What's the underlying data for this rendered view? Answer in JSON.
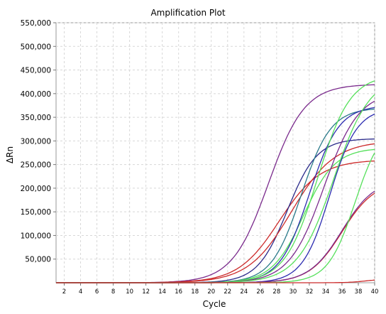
{
  "chart_data": {
    "type": "line",
    "title": "Amplification Plot",
    "xlabel": "Cycle",
    "ylabel": "ΔRn",
    "xlim": [
      1,
      40
    ],
    "ylim": [
      0,
      550000
    ],
    "x_ticks": [
      "2",
      "4",
      "6",
      "8",
      "10",
      "12",
      "14",
      "16",
      "18",
      "20",
      "22",
      "24",
      "26",
      "28",
      "30",
      "32",
      "34",
      "36",
      "38",
      "40"
    ],
    "y_ticks": [
      "50,000",
      "100,000",
      "150,000",
      "200,000",
      "250,000",
      "300,000",
      "350,000",
      "400,000",
      "450,000",
      "500,000",
      "550,000"
    ],
    "grid": true,
    "colors": {
      "purple": "#7a2a8c",
      "red": "#cc2a2a",
      "blue": "#2a2ab0",
      "green": "#55e05a",
      "navy": "#2a2a8a",
      "teal": "#2a7a8a"
    },
    "series": [
      {
        "color": "purple",
        "max": 420000,
        "mid": 27.0,
        "k": 0.45
      },
      {
        "color": "red",
        "max": 260000,
        "mid": 28.3,
        "k": 0.4
      },
      {
        "color": "navy",
        "max": 305000,
        "mid": 29.3,
        "k": 0.55
      },
      {
        "color": "red",
        "max": 300000,
        "mid": 29.8,
        "k": 0.38
      },
      {
        "color": "teal",
        "max": 370000,
        "mid": 31.0,
        "k": 0.55
      },
      {
        "color": "green",
        "max": 285000,
        "mid": 31.3,
        "k": 0.52
      },
      {
        "color": "blue",
        "max": 375000,
        "mid": 32.0,
        "k": 0.55
      },
      {
        "color": "green",
        "max": 440000,
        "mid": 33.0,
        "k": 0.5
      },
      {
        "color": "purple",
        "max": 405000,
        "mid": 33.8,
        "k": 0.47
      },
      {
        "color": "blue",
        "max": 370000,
        "mid": 34.5,
        "k": 0.6
      },
      {
        "color": "green",
        "max": 440000,
        "mid": 35.0,
        "k": 0.45
      },
      {
        "color": "red",
        "max": 215000,
        "mid": 36.0,
        "k": 0.5
      },
      {
        "color": "purple",
        "max": 220000,
        "mid": 36.0,
        "k": 0.5
      },
      {
        "color": "green",
        "max": 340000,
        "mid": 37.6,
        "k": 0.6
      },
      {
        "color": "red",
        "max": 8000,
        "mid": 39.0,
        "k": 0.9
      }
    ]
  }
}
